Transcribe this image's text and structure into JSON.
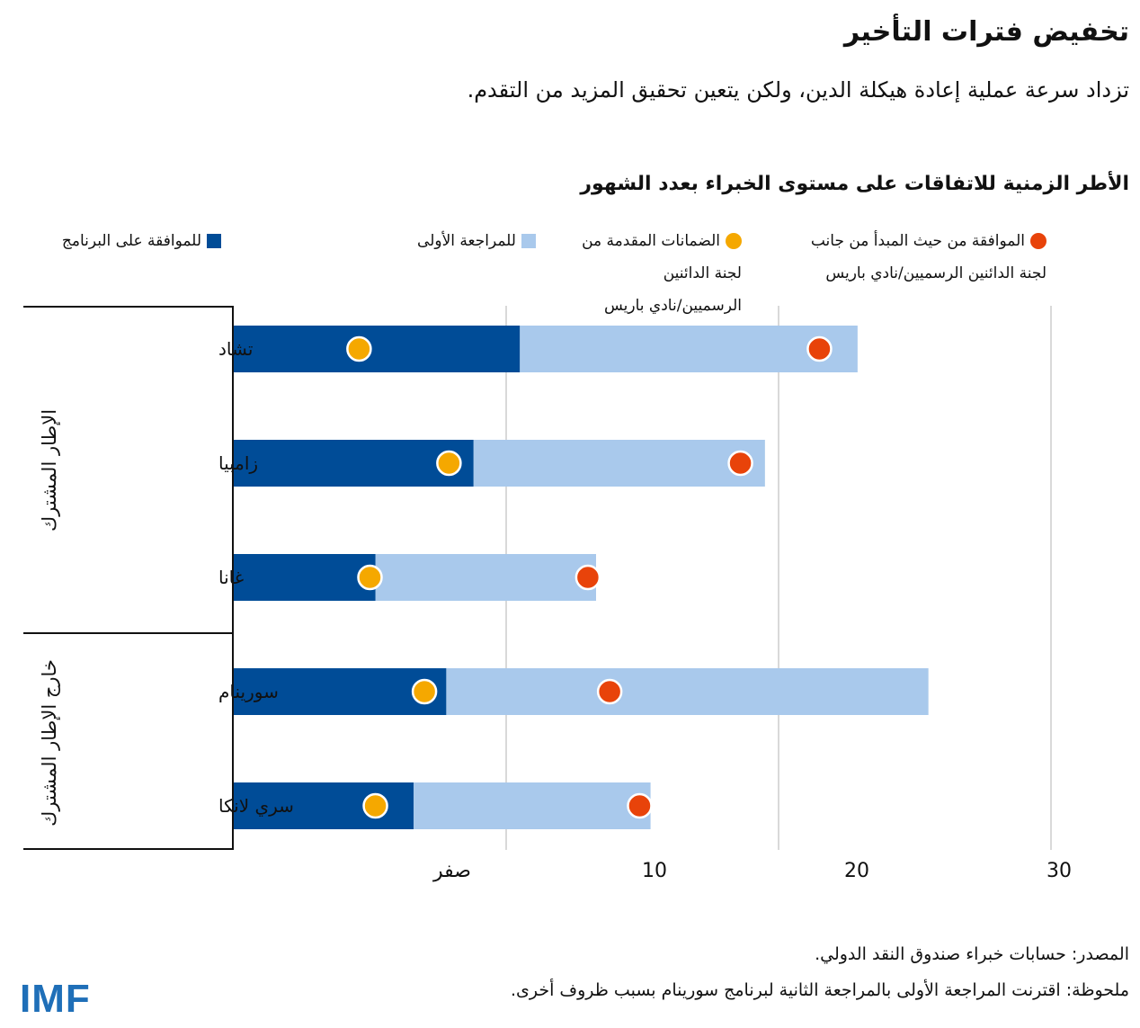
{
  "title": "تخفيض فترات التأخير",
  "subtitle": "تزداد سرعة عملية إعادة هيكلة الدين، ولكن يتعين تحقيق المزيد من التقدم.",
  "chart_data": {
    "type": "bar",
    "orientation": "horizontal-stacked-with-markers",
    "title": "الأطر الزمنية للاتفاقات على مستوى الخبراء بعدد الشهور",
    "categories": [
      "تشاد",
      "زامبيا",
      "غانا",
      "سورينام",
      "سري لانكا"
    ],
    "groups": [
      {
        "label": "الإطار المشترك",
        "categories": [
          "تشاد",
          "زامبيا",
          "غانا"
        ]
      },
      {
        "label": "خارج الإطار المشترك",
        "categories": [
          "سورينام",
          "سري لانكا"
        ]
      }
    ],
    "series": [
      {
        "name": "للموافقة على البرنامج",
        "kind": "bar",
        "color": "#004C97",
        "values": [
          10.5,
          8.8,
          5.2,
          7.8,
          6.6
        ]
      },
      {
        "name": "للمراجعة الأولى",
        "kind": "bar-cumulative-end",
        "color": "#A9C9EC",
        "values": [
          22.9,
          19.5,
          13.3,
          25.5,
          15.3
        ]
      },
      {
        "name": "الضمانات المقدمة من لجنة الدائنين الرسميين/نادي باريس",
        "kind": "marker",
        "color": "#F5A800",
        "values": [
          4.6,
          7.9,
          5.0,
          7.0,
          5.2
        ]
      },
      {
        "name": "الموافقة من حيث المبدأ من جانب لجنة الدائنين الرسميين/نادي باريس",
        "kind": "marker",
        "color": "#E8430A",
        "values": [
          21.5,
          18.6,
          13.0,
          13.8,
          14.9
        ]
      }
    ],
    "xlim": [
      0,
      30
    ],
    "xticks": [
      0,
      10,
      20,
      30
    ],
    "xtick_labels": [
      "صفر",
      "10",
      "20",
      "30"
    ],
    "grid": true
  },
  "legend": {
    "bar_program": "للموافقة على البرنامج",
    "bar_review": "للمراجعة الأولى",
    "dot_assurances_1": "الضمانات المقدمة من",
    "dot_assurances_2": "لجنة الدائنين",
    "dot_assurances_3": "الرسميين/نادي باريس",
    "dot_principle_1": "الموافقة من حيث المبدأ من جانب",
    "dot_principle_2": "لجنة الدائنين الرسميين/نادي باريس"
  },
  "footer": {
    "source": "المصدر: حسابات خبراء صندوق النقد الدولي.",
    "note": "ملحوظة: اقترنت المراجعة الأولى بالمراجعة الثانية لبرنامج سورينام بسبب ظروف أخرى."
  },
  "logo": "IMF"
}
